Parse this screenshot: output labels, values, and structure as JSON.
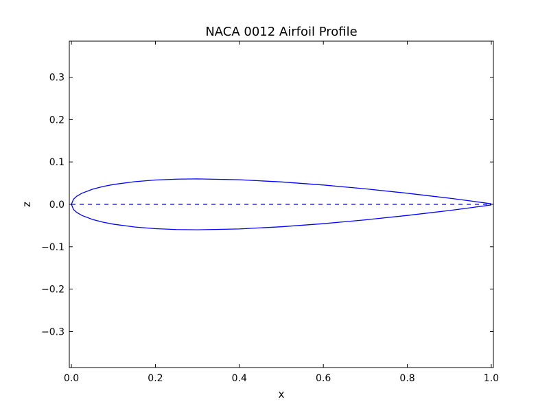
{
  "chart_data": {
    "type": "line",
    "title": "NACA 0012 Airfoil Profile",
    "xlabel": "x",
    "ylabel": "z",
    "xlim": [
      -0.005,
      1.005
    ],
    "ylim": [
      -0.385,
      0.385
    ],
    "xticks": [
      0.0,
      0.2,
      0.4,
      0.6,
      0.8,
      1.0
    ],
    "xtick_labels": [
      "0.0",
      "0.2",
      "0.4",
      "0.6",
      "0.8",
      "1.0"
    ],
    "yticks": [
      -0.3,
      -0.2,
      -0.1,
      0.0,
      0.1,
      0.2,
      0.3
    ],
    "ytick_labels": [
      "−0.3",
      "−0.2",
      "−0.1",
      "0.0",
      "0.1",
      "0.2",
      "0.3"
    ],
    "grid": false,
    "legend": "none",
    "series": [
      {
        "style": "solid",
        "color": "#0000ff",
        "x": [
          1.0,
          0.95,
          0.9,
          0.8,
          0.7,
          0.6,
          0.5,
          0.4,
          0.3,
          0.25,
          0.2,
          0.15,
          0.1,
          0.075,
          0.05,
          0.025,
          0.0125,
          0.005,
          0.0,
          0.005,
          0.0125,
          0.025,
          0.05,
          0.075,
          0.1,
          0.15,
          0.2,
          0.25,
          0.3,
          0.4,
          0.5,
          0.6,
          0.7,
          0.8,
          0.9,
          0.95,
          1.0
        ],
        "y": [
          0.0013,
          0.0081,
          0.0145,
          0.0262,
          0.0366,
          0.0456,
          0.0529,
          0.058,
          0.06,
          0.0594,
          0.0574,
          0.0534,
          0.0468,
          0.042,
          0.0355,
          0.0262,
          0.0189,
          0.0121,
          0.0,
          -0.0121,
          -0.0189,
          -0.0262,
          -0.0355,
          -0.042,
          -0.0468,
          -0.0534,
          -0.0574,
          -0.0594,
          -0.06,
          -0.058,
          -0.0529,
          -0.0456,
          -0.0366,
          -0.0262,
          -0.0145,
          -0.0081,
          -0.0013
        ]
      },
      {
        "style": "dashed",
        "color": "#0000ff",
        "x": [
          0.0,
          1.0
        ],
        "y": [
          0.0,
          0.0
        ]
      }
    ]
  }
}
